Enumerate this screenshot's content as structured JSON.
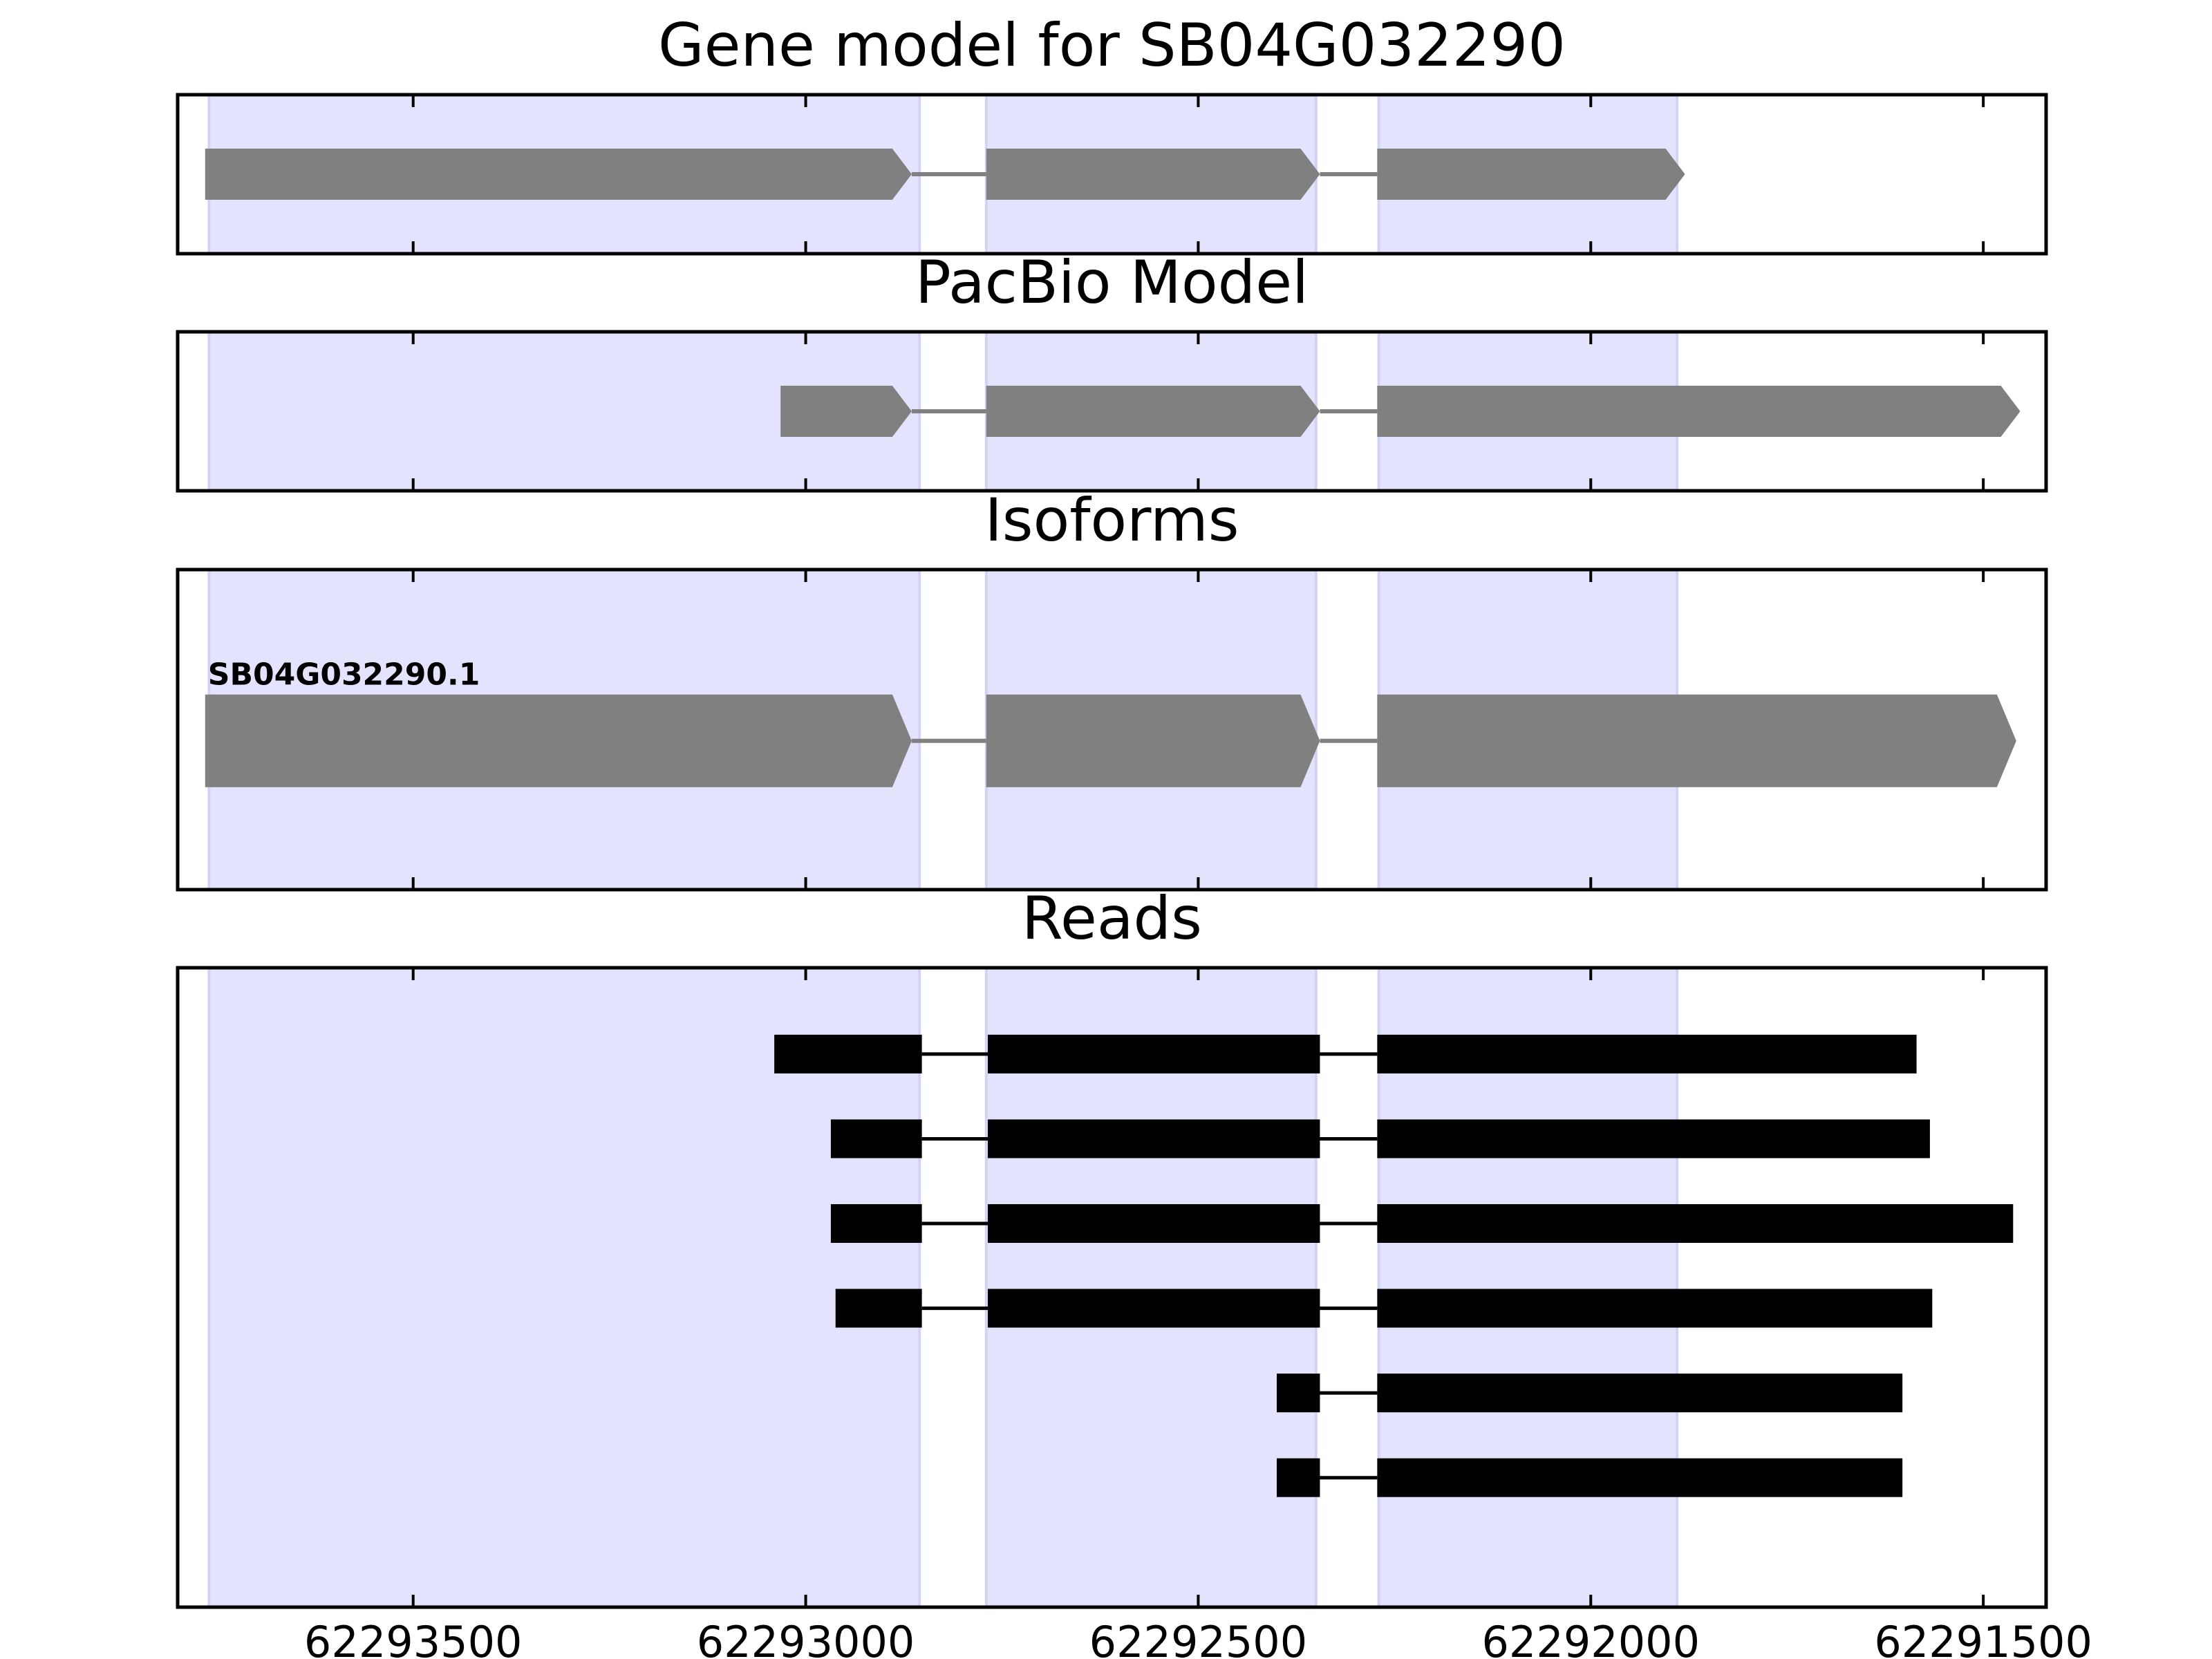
{
  "chart_data": [
    {
      "type": "gene-model",
      "title": "Gene model for SB04G032290",
      "xlim": [
        62293800,
        62291420
      ],
      "xticks": [
        62293500,
        62293000,
        62292500,
        62292000,
        62291500
      ],
      "shaded_regions": [
        [
          62293760,
          62292855
        ],
        [
          62292770,
          62292350
        ],
        [
          62292270,
          62291890
        ]
      ],
      "tracks": [
        {
          "exons": [
            [
              62293765,
              62292865
            ],
            [
              62292770,
              62292345
            ],
            [
              62292272,
              62291880
            ]
          ],
          "strand": "-"
        }
      ]
    },
    {
      "type": "gene-model",
      "title": "PacBio Model",
      "xlim": [
        62293800,
        62291420
      ],
      "xticks": [
        62293500,
        62293000,
        62292500,
        62292000,
        62291500
      ],
      "shaded_regions": [
        [
          62293760,
          62292855
        ],
        [
          62292770,
          62292350
        ],
        [
          62292270,
          62291890
        ]
      ],
      "tracks": [
        {
          "exons": [
            [
              62293032,
              62292865
            ],
            [
              62292770,
              62292345
            ],
            [
              62292272,
              62291453
            ]
          ],
          "strand": "-"
        }
      ]
    },
    {
      "type": "gene-model",
      "title": "Isoforms",
      "xlim": [
        62293800,
        62291420
      ],
      "xticks": [
        62293500,
        62293000,
        62292500,
        62292000,
        62291500
      ],
      "shaded_regions": [
        [
          62293760,
          62292855
        ],
        [
          62292770,
          62292350
        ],
        [
          62292270,
          62291890
        ]
      ],
      "tracks": [
        {
          "label": "SB04G032290.1",
          "exons": [
            [
              62293765,
              62292865
            ],
            [
              62292770,
              62292345
            ],
            [
              62292272,
              62291458
            ]
          ],
          "strand": "-"
        }
      ]
    },
    {
      "type": "reads",
      "title": "Reads",
      "xlim": [
        62293800,
        62291420
      ],
      "xticks": [
        62293500,
        62293000,
        62292500,
        62292000,
        62291500
      ],
      "xtick_labels": [
        "62293500",
        "62293000",
        "62292500",
        "62292000",
        "62291500"
      ],
      "shaded_regions": [
        [
          62293760,
          62292855
        ],
        [
          62292770,
          62292350
        ],
        [
          62292270,
          62291890
        ]
      ],
      "tracks": [
        {
          "exons": [
            [
              62293040,
              62292852
            ],
            [
              62292768,
              62292345
            ],
            [
              62292272,
              62291585
            ]
          ]
        },
        {
          "exons": [
            [
              62292968,
              62292852
            ],
            [
              62292768,
              62292345
            ],
            [
              62292272,
              62291568
            ]
          ]
        },
        {
          "exons": [
            [
              62292968,
              62292852
            ],
            [
              62292768,
              62292345
            ],
            [
              62292272,
              62291462
            ]
          ]
        },
        {
          "exons": [
            [
              62292962,
              62292852
            ],
            [
              62292768,
              62292345
            ],
            [
              62292272,
              62291565
            ]
          ]
        },
        {
          "exons": [
            [
              62292400,
              62292345
            ],
            [
              62292272,
              62291603
            ]
          ]
        },
        {
          "exons": [
            [
              62292400,
              62292345
            ],
            [
              62292272,
              62291603
            ]
          ]
        }
      ]
    }
  ],
  "colors": {
    "shade": "#e3e3fd",
    "shade_edge": "#d2d2f4",
    "model_exon": "#808080",
    "model_intron": "#808080",
    "read": "#000000",
    "frame": "#000000",
    "text": "#000000"
  }
}
